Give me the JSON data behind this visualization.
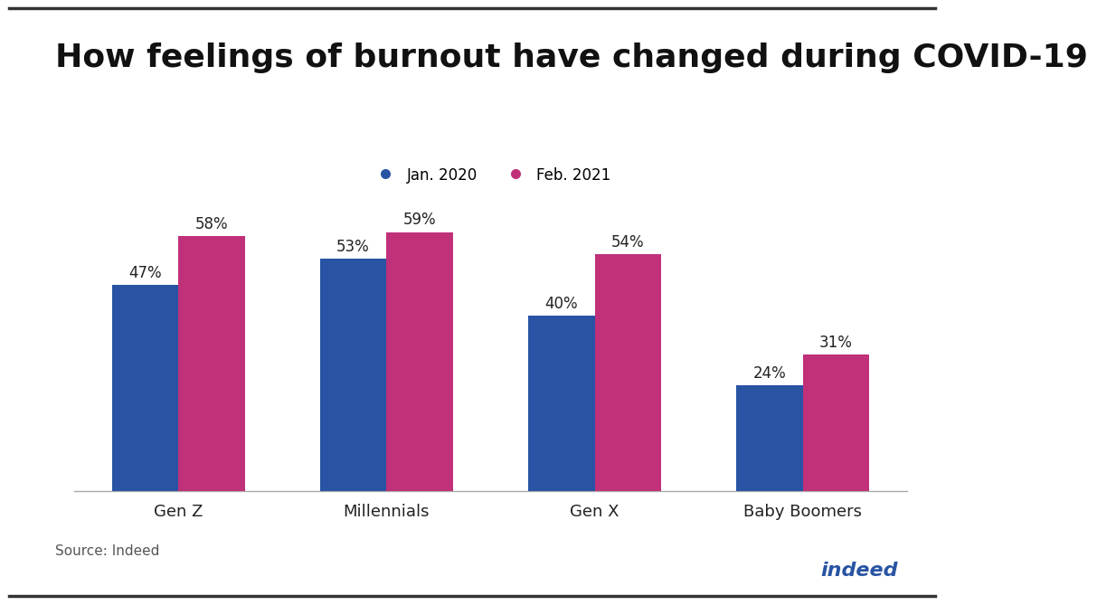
{
  "title": "How feelings of burnout have changed during COVID-19",
  "categories": [
    "Gen Z",
    "Millennials",
    "Gen X",
    "Baby Boomers"
  ],
  "series": [
    {
      "label": "Jan. 2020",
      "values": [
        47,
        53,
        40,
        24
      ],
      "color": "#2954a3"
    },
    {
      "label": "Feb. 2021",
      "values": [
        58,
        59,
        54,
        31
      ],
      "color": "#c0317a"
    }
  ],
  "ylim": [
    0,
    70
  ],
  "source_text": "Source: Indeed",
  "background_color": "#ffffff",
  "title_fontsize": 26,
  "label_fontsize": 13,
  "bar_value_fontsize": 12,
  "legend_fontsize": 12,
  "source_fontsize": 11,
  "bar_width": 0.32,
  "indeed_logo_text": "indeed",
  "top_border_color": "#333333",
  "bottom_border_color": "#333333"
}
